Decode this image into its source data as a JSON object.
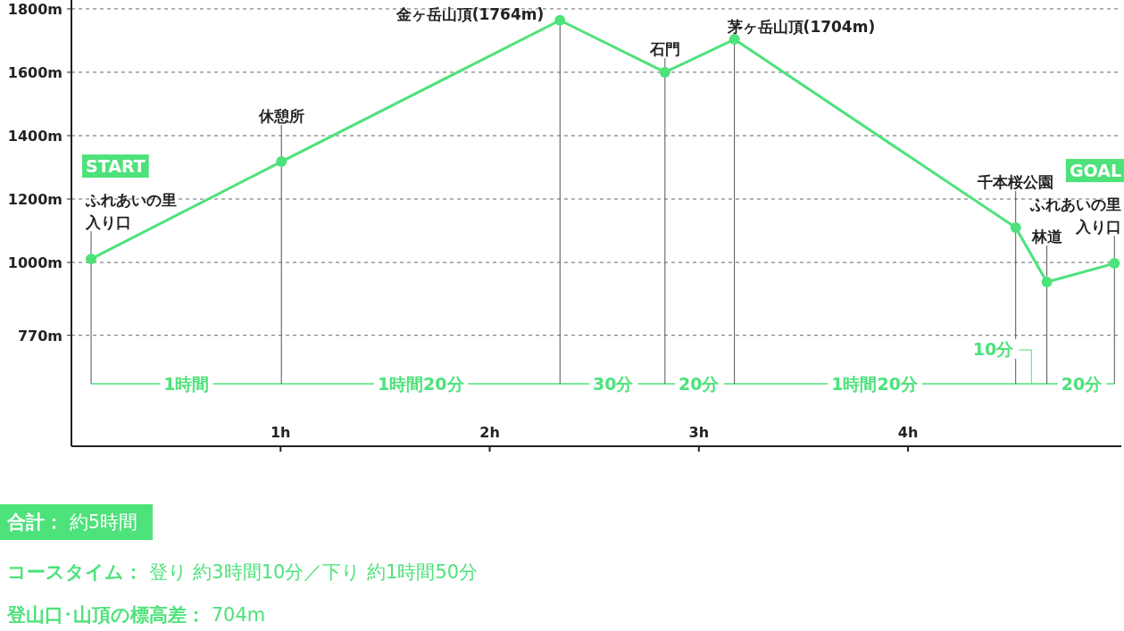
{
  "chart_data": {
    "type": "line",
    "color": "#4de27a",
    "marker": "circle",
    "grid": "y",
    "x": [
      0.094,
      1.004,
      2.336,
      2.838,
      3.17,
      4.515,
      4.664,
      4.987
    ],
    "values": [
      1011,
      1318,
      1764,
      1600,
      1704,
      1110,
      938,
      997
    ],
    "xlim": [
      0,
      5.02
    ],
    "ylim": [
      420,
      1828
    ],
    "xticks": [
      {
        "value": 1,
        "label": "1h"
      },
      {
        "value": 2,
        "label": "2h"
      },
      {
        "value": 3,
        "label": "3h"
      },
      {
        "value": 4,
        "label": "4h"
      }
    ],
    "yticks": [
      {
        "value": 770,
        "label": "770m"
      },
      {
        "value": 1000,
        "label": "1000m"
      },
      {
        "value": 1200,
        "label": "1200m"
      },
      {
        "value": 1400,
        "label": "1400m"
      },
      {
        "value": 1600,
        "label": "1600m"
      },
      {
        "value": 1800,
        "label": "1800m"
      }
    ],
    "ref_lines": [
      {
        "axis": "y",
        "value": 617,
        "color": "#4de27a"
      },
      {
        "axis": "x",
        "value": 0.094,
        "color": "#555555"
      },
      {
        "axis": "x",
        "value": 1.004,
        "color": "#555555"
      },
      {
        "axis": "x",
        "value": 2.336,
        "color": "#555555"
      },
      {
        "axis": "x",
        "value": 2.838,
        "color": "#555555"
      },
      {
        "axis": "x",
        "value": 3.17,
        "color": "#555555"
      },
      {
        "axis": "x",
        "value": 4.515,
        "color": "#555555"
      },
      {
        "axis": "x",
        "value": 4.664,
        "color": "#555555"
      },
      {
        "axis": "x",
        "value": 4.987,
        "color": "#555555"
      }
    ],
    "annotations": [
      "合計： 約5時間",
      "コースタイム： 登り 約3時間10分／下り 約1時間50分",
      "登山口･山頂の標高差： 704m",
      {
        "text": "入り口",
        "x": 0.094,
        "y": 1011
      },
      "ふれあいの里",
      "START",
      {
        "text": "休憩所",
        "x": 1.004,
        "y": 1318
      },
      {
        "text": "金ヶ岳山頂(1764m)",
        "x": 2.336,
        "y": 1764
      },
      {
        "text": "石門",
        "x": 2.838,
        "y": 1600
      },
      {
        "text": "茅ヶ岳山頂(1704m)",
        "x": 3.17,
        "y": 1704
      },
      {
        "text": "千本桜公園",
        "x": 4.515,
        "y": 1110
      },
      {
        "text": "林道",
        "x": 4.664,
        "y": 938
      },
      {
        "text": "入り口",
        "x": 4.987,
        "y": 997
      },
      "ふれあいの里",
      "GOAL",
      {
        "text": "1時間",
        "x": 0.55,
        "y": 617
      },
      {
        "text": "1時間20分",
        "x": 1.67,
        "y": 617
      },
      {
        "text": "30分",
        "x": 2.59,
        "y": 617
      },
      {
        "text": "20分",
        "x": 3.0,
        "y": 617
      },
      {
        "text": "1時間20分",
        "x": 3.84,
        "y": 617
      },
      {
        "text": "10分",
        "x": 4.59,
        "y": 617
      },
      {
        "text": "20分",
        "x": 4.83,
        "y": 617
      }
    ]
  }
}
